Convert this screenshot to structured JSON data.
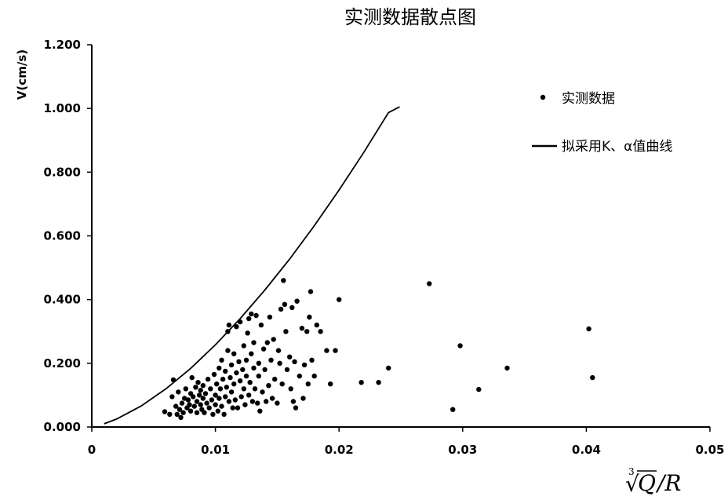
{
  "chart_data": {
    "type": "scatter",
    "title": "实测数据散点图",
    "ylabel": "V(cm/s)",
    "xlabel": {
      "root_index": "3",
      "variable": "Q",
      "divisor": "/R"
    },
    "xlim": [
      0,
      0.05
    ],
    "ylim": [
      0,
      1.2
    ],
    "xticks": [
      0,
      0.01,
      0.02,
      0.03,
      0.04,
      0.05
    ],
    "xtick_labels": [
      "0",
      "0.01",
      "0.02",
      "0.03",
      "0.04",
      "0.05"
    ],
    "yticks": [
      0,
      0.2,
      0.4,
      0.6,
      0.8,
      1.0,
      1.2
    ],
    "ytick_labels": [
      "0.000",
      "0.200",
      "0.400",
      "0.600",
      "0.800",
      "1.000",
      "1.200"
    ],
    "legend": {
      "position": "top-right",
      "entries": [
        "实测数据",
        "拟采用K、α值曲线"
      ]
    },
    "grid": false,
    "series": [
      {
        "name": "实测数据",
        "kind": "scatter",
        "points": [
          [
            0.0059,
            0.048
          ],
          [
            0.0063,
            0.04
          ],
          [
            0.0065,
            0.095
          ],
          [
            0.0066,
            0.148
          ],
          [
            0.0068,
            0.065
          ],
          [
            0.0069,
            0.04
          ],
          [
            0.007,
            0.11
          ],
          [
            0.0071,
            0.055
          ],
          [
            0.0072,
            0.03
          ],
          [
            0.0073,
            0.075
          ],
          [
            0.0074,
            0.045
          ],
          [
            0.0075,
            0.09
          ],
          [
            0.0076,
            0.12
          ],
          [
            0.0077,
            0.06
          ],
          [
            0.0078,
            0.085
          ],
          [
            0.0079,
            0.07
          ],
          [
            0.008,
            0.105
          ],
          [
            0.008,
            0.05
          ],
          [
            0.0081,
            0.155
          ],
          [
            0.0082,
            0.095
          ],
          [
            0.0083,
            0.065
          ],
          [
            0.0084,
            0.125
          ],
          [
            0.0085,
            0.08
          ],
          [
            0.0085,
            0.045
          ],
          [
            0.0086,
            0.14
          ],
          [
            0.0087,
            0.1
          ],
          [
            0.0088,
            0.07
          ],
          [
            0.0088,
            0.115
          ],
          [
            0.0089,
            0.055
          ],
          [
            0.009,
            0.09
          ],
          [
            0.009,
            0.13
          ],
          [
            0.0091,
            0.045
          ],
          [
            0.0092,
            0.105
          ],
          [
            0.0093,
            0.075
          ],
          [
            0.0094,
            0.15
          ],
          [
            0.0095,
            0.06
          ],
          [
            0.0096,
            0.12
          ],
          [
            0.0097,
            0.085
          ],
          [
            0.0098,
            0.04
          ],
          [
            0.0099,
            0.165
          ],
          [
            0.01,
            0.1
          ],
          [
            0.01,
            0.07
          ],
          [
            0.0101,
            0.135
          ],
          [
            0.0102,
            0.05
          ],
          [
            0.0103,
            0.185
          ],
          [
            0.0103,
            0.09
          ],
          [
            0.0104,
            0.12
          ],
          [
            0.0105,
            0.21
          ],
          [
            0.0105,
            0.065
          ],
          [
            0.0106,
            0.15
          ],
          [
            0.0107,
            0.04
          ],
          [
            0.0108,
            0.095
          ],
          [
            0.0108,
            0.175
          ],
          [
            0.0109,
            0.125
          ],
          [
            0.011,
            0.24
          ],
          [
            0.011,
            0.3
          ],
          [
            0.0111,
            0.08
          ],
          [
            0.0111,
            0.32
          ],
          [
            0.0112,
            0.155
          ],
          [
            0.0113,
            0.195
          ],
          [
            0.0113,
            0.11
          ],
          [
            0.0114,
            0.06
          ],
          [
            0.0115,
            0.23
          ],
          [
            0.0115,
            0.135
          ],
          [
            0.0116,
            0.085
          ],
          [
            0.0117,
            0.17
          ],
          [
            0.0117,
            0.315
          ],
          [
            0.0118,
            0.06
          ],
          [
            0.0119,
            0.205
          ],
          [
            0.012,
            0.145
          ],
          [
            0.012,
            0.33
          ],
          [
            0.0121,
            0.095
          ],
          [
            0.0122,
            0.18
          ],
          [
            0.0123,
            0.12
          ],
          [
            0.0123,
            0.255
          ],
          [
            0.0124,
            0.07
          ],
          [
            0.0125,
            0.16
          ],
          [
            0.0125,
            0.21
          ],
          [
            0.0126,
            0.295
          ],
          [
            0.0127,
            0.1
          ],
          [
            0.0127,
            0.34
          ],
          [
            0.0128,
            0.14
          ],
          [
            0.0129,
            0.23
          ],
          [
            0.0129,
            0.355
          ],
          [
            0.013,
            0.08
          ],
          [
            0.0131,
            0.185
          ],
          [
            0.0131,
            0.265
          ],
          [
            0.0132,
            0.12
          ],
          [
            0.0133,
            0.35
          ],
          [
            0.0134,
            0.075
          ],
          [
            0.0135,
            0.2
          ],
          [
            0.0135,
            0.16
          ],
          [
            0.0136,
            0.05
          ],
          [
            0.0137,
            0.32
          ],
          [
            0.0138,
            0.11
          ],
          [
            0.0139,
            0.245
          ],
          [
            0.014,
            0.18
          ],
          [
            0.0141,
            0.08
          ],
          [
            0.0142,
            0.265
          ],
          [
            0.0143,
            0.13
          ],
          [
            0.0144,
            0.345
          ],
          [
            0.0145,
            0.21
          ],
          [
            0.0146,
            0.09
          ],
          [
            0.0147,
            0.275
          ],
          [
            0.0148,
            0.15
          ],
          [
            0.015,
            0.075
          ],
          [
            0.0151,
            0.24
          ],
          [
            0.0152,
            0.2
          ],
          [
            0.0153,
            0.37
          ],
          [
            0.0154,
            0.135
          ],
          [
            0.0155,
            0.46
          ],
          [
            0.0156,
            0.385
          ],
          [
            0.0157,
            0.3
          ],
          [
            0.0158,
            0.18
          ],
          [
            0.016,
            0.22
          ],
          [
            0.0161,
            0.12
          ],
          [
            0.0162,
            0.375
          ],
          [
            0.0163,
            0.08
          ],
          [
            0.0164,
            0.205
          ],
          [
            0.0165,
            0.06
          ],
          [
            0.0166,
            0.395
          ],
          [
            0.0168,
            0.16
          ],
          [
            0.017,
            0.31
          ],
          [
            0.0171,
            0.09
          ],
          [
            0.0172,
            0.195
          ],
          [
            0.0174,
            0.3
          ],
          [
            0.0175,
            0.135
          ],
          [
            0.0176,
            0.345
          ],
          [
            0.0177,
            0.425
          ],
          [
            0.0178,
            0.21
          ],
          [
            0.018,
            0.16
          ],
          [
            0.0182,
            0.32
          ],
          [
            0.0185,
            0.3
          ],
          [
            0.019,
            0.24
          ],
          [
            0.0193,
            0.135
          ],
          [
            0.0197,
            0.24
          ],
          [
            0.02,
            0.4
          ],
          [
            0.0218,
            0.14
          ],
          [
            0.0232,
            0.14
          ],
          [
            0.024,
            0.185
          ],
          [
            0.0273,
            0.45
          ],
          [
            0.0292,
            0.055
          ],
          [
            0.0298,
            0.255
          ],
          [
            0.0313,
            0.118
          ],
          [
            0.0336,
            0.185
          ],
          [
            0.0402,
            0.308
          ],
          [
            0.0405,
            0.155
          ]
        ]
      },
      {
        "name": "拟采用K、α值曲线",
        "kind": "line",
        "points": [
          [
            0.001,
            0.01
          ],
          [
            0.002,
            0.025
          ],
          [
            0.004,
            0.066
          ],
          [
            0.006,
            0.12
          ],
          [
            0.008,
            0.184
          ],
          [
            0.01,
            0.258
          ],
          [
            0.012,
            0.34
          ],
          [
            0.014,
            0.43
          ],
          [
            0.016,
            0.527
          ],
          [
            0.018,
            0.632
          ],
          [
            0.02,
            0.744
          ],
          [
            0.022,
            0.862
          ],
          [
            0.024,
            0.987
          ],
          [
            0.0249,
            1.005
          ]
        ]
      }
    ]
  }
}
